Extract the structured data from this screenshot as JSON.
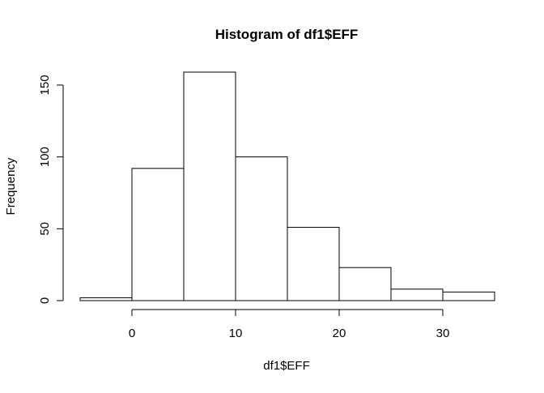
{
  "chart_data": {
    "type": "bar",
    "title": "Histogram of df1$EFF",
    "xlabel": "df1$EFF",
    "ylabel": "Frequency",
    "bins": [
      {
        "from": -5,
        "to": 0,
        "count": 2
      },
      {
        "from": 0,
        "to": 5,
        "count": 92
      },
      {
        "from": 5,
        "to": 10,
        "count": 159
      },
      {
        "from": 10,
        "to": 15,
        "count": 100
      },
      {
        "from": 15,
        "to": 20,
        "count": 51
      },
      {
        "from": 20,
        "to": 25,
        "count": 23
      },
      {
        "from": 25,
        "to": 30,
        "count": 8
      },
      {
        "from": 30,
        "to": 35,
        "count": 6
      }
    ],
    "xticks": [
      0,
      10,
      20,
      30
    ],
    "yticks": [
      0,
      50,
      100,
      150
    ],
    "xlim": [
      -5,
      35
    ],
    "ylim": [
      0,
      159
    ],
    "grid": false,
    "colors": {
      "bar_fill": "#ffffff",
      "bar_stroke": "#000000",
      "axis": "#000000",
      "text": "#000000"
    }
  }
}
